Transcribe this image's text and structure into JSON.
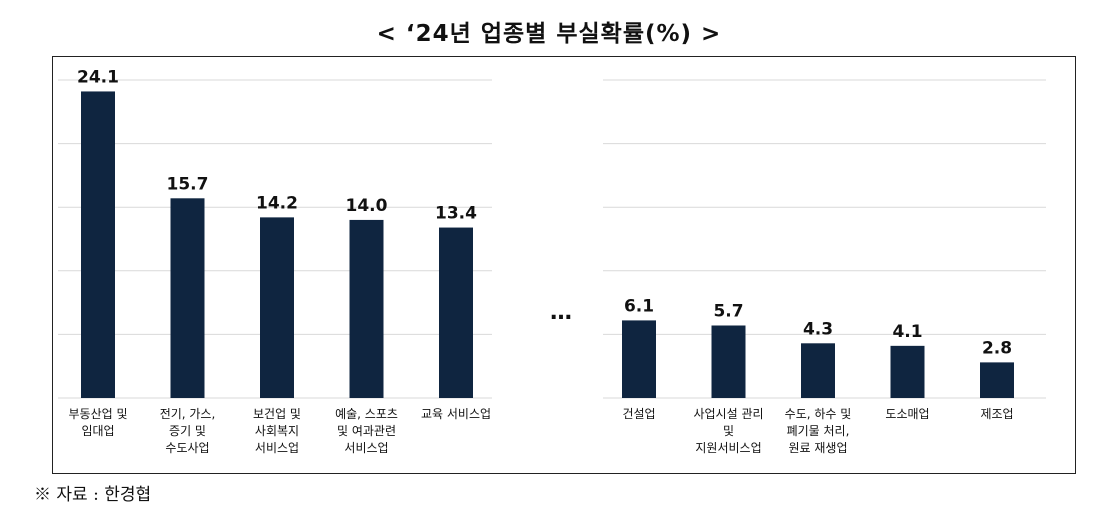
{
  "title": "< ‘24년 업종별 부실확률(%) >",
  "source": "※ 자료 : 한경협",
  "gap_marker": "…",
  "colors": {
    "bar": "#0f2540",
    "grid": "#d9d9d9"
  },
  "chart_data": [
    {
      "type": "bar",
      "title": "",
      "xlabel": "",
      "ylabel": "",
      "ylim": [
        0,
        25
      ],
      "grid": true,
      "categories": [
        [
          "부동산업 및",
          "임대업"
        ],
        [
          "전기, 가스,",
          "증기 및",
          "수도사업"
        ],
        [
          "보건업 및",
          "사회복지",
          "서비스업"
        ],
        [
          "예술, 스포츠",
          "및 여과관련",
          "서비스업"
        ],
        [
          "교육 서비스업"
        ]
      ],
      "values": [
        24.1,
        15.7,
        14.2,
        14.0,
        13.4
      ],
      "value_labels": [
        "24.1",
        "15.7",
        "14.2",
        "14.0",
        "13.4"
      ]
    },
    {
      "type": "bar",
      "title": "",
      "xlabel": "",
      "ylabel": "",
      "ylim": [
        0,
        25
      ],
      "grid": true,
      "categories": [
        [
          "건설업"
        ],
        [
          "사업시설 관리",
          "및",
          "지원서비스업"
        ],
        [
          "수도, 하수 및",
          "폐기물 처리,",
          "원료 재생업"
        ],
        [
          "도소매업"
        ],
        [
          "제조업"
        ]
      ],
      "values": [
        6.1,
        5.7,
        4.3,
        4.1,
        2.8
      ],
      "value_labels": [
        "6.1",
        "5.7",
        "4.3",
        "4.1",
        "2.8"
      ]
    }
  ]
}
